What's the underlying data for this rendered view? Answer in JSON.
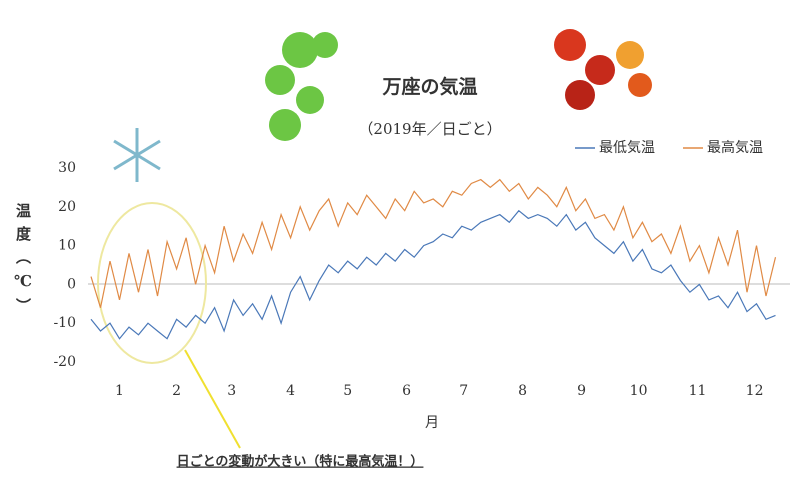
{
  "chart_data": {
    "type": "line",
    "title": "万座の気温",
    "subtitle": "（2019年／日ごと）",
    "x_label": "月",
    "y_label": "温度（℃）",
    "annotation": "日ごとの変動が大きい（特に最高気温！）",
    "xlim": [
      0,
      365
    ],
    "xticks": [
      {
        "value": 15,
        "label": "1"
      },
      {
        "value": 45,
        "label": "2"
      },
      {
        "value": 74,
        "label": "3"
      },
      {
        "value": 105,
        "label": "4"
      },
      {
        "value": 135,
        "label": "5"
      },
      {
        "value": 166,
        "label": "6"
      },
      {
        "value": 196,
        "label": "7"
      },
      {
        "value": 227,
        "label": "8"
      },
      {
        "value": 258,
        "label": "9"
      },
      {
        "value": 288,
        "label": "10"
      },
      {
        "value": 319,
        "label": "11"
      },
      {
        "value": 349,
        "label": "12"
      }
    ],
    "ylim": [
      -20,
      30
    ],
    "yticks": [
      -20,
      -10,
      0,
      10,
      20,
      30
    ],
    "grid": false,
    "legend": "top-right",
    "x": [
      0,
      5,
      10,
      15,
      20,
      25,
      30,
      35,
      40,
      45,
      50,
      55,
      60,
      65,
      70,
      75,
      80,
      85,
      90,
      95,
      100,
      105,
      110,
      115,
      120,
      125,
      130,
      135,
      140,
      145,
      150,
      155,
      160,
      165,
      170,
      175,
      180,
      185,
      190,
      195,
      200,
      205,
      210,
      215,
      220,
      225,
      230,
      235,
      240,
      245,
      250,
      255,
      260,
      265,
      270,
      275,
      280,
      285,
      290,
      295,
      300,
      305,
      310,
      315,
      320,
      325,
      330,
      335,
      340,
      345,
      350,
      355,
      360
    ],
    "series": [
      {
        "name": "最低気温",
        "color": "#4a78b8",
        "values": [
          -9,
          -12,
          -10,
          -14,
          -11,
          -13,
          -10,
          -12,
          -14,
          -9,
          -11,
          -8,
          -10,
          -6,
          -12,
          -4,
          -8,
          -5,
          -9,
          -3,
          -10,
          -2,
          2,
          -4,
          1,
          5,
          3,
          6,
          4,
          7,
          5,
          8,
          6,
          9,
          7,
          10,
          11,
          13,
          12,
          15,
          14,
          16,
          17,
          18,
          16,
          19,
          17,
          18,
          17,
          15,
          18,
          14,
          16,
          12,
          10,
          8,
          11,
          6,
          9,
          4,
          3,
          5,
          1,
          -2,
          0,
          -4,
          -3,
          -6,
          -2,
          -7,
          -5,
          -9,
          -8
        ]
      },
      {
        "name": "最高気温",
        "color": "#e08a45",
        "values": [
          2,
          -6,
          6,
          -4,
          8,
          -2,
          9,
          -3,
          11,
          4,
          12,
          0,
          10,
          3,
          15,
          6,
          13,
          8,
          16,
          9,
          18,
          12,
          20,
          14,
          19,
          22,
          15,
          21,
          18,
          23,
          20,
          17,
          22,
          19,
          24,
          21,
          22,
          20,
          24,
          23,
          26,
          27,
          25,
          27,
          24,
          26,
          22,
          25,
          23,
          20,
          25,
          19,
          22,
          17,
          18,
          14,
          20,
          12,
          16,
          11,
          13,
          8,
          15,
          6,
          10,
          3,
          12,
          5,
          14,
          -2,
          10,
          -3,
          7
        ]
      }
    ]
  }
}
